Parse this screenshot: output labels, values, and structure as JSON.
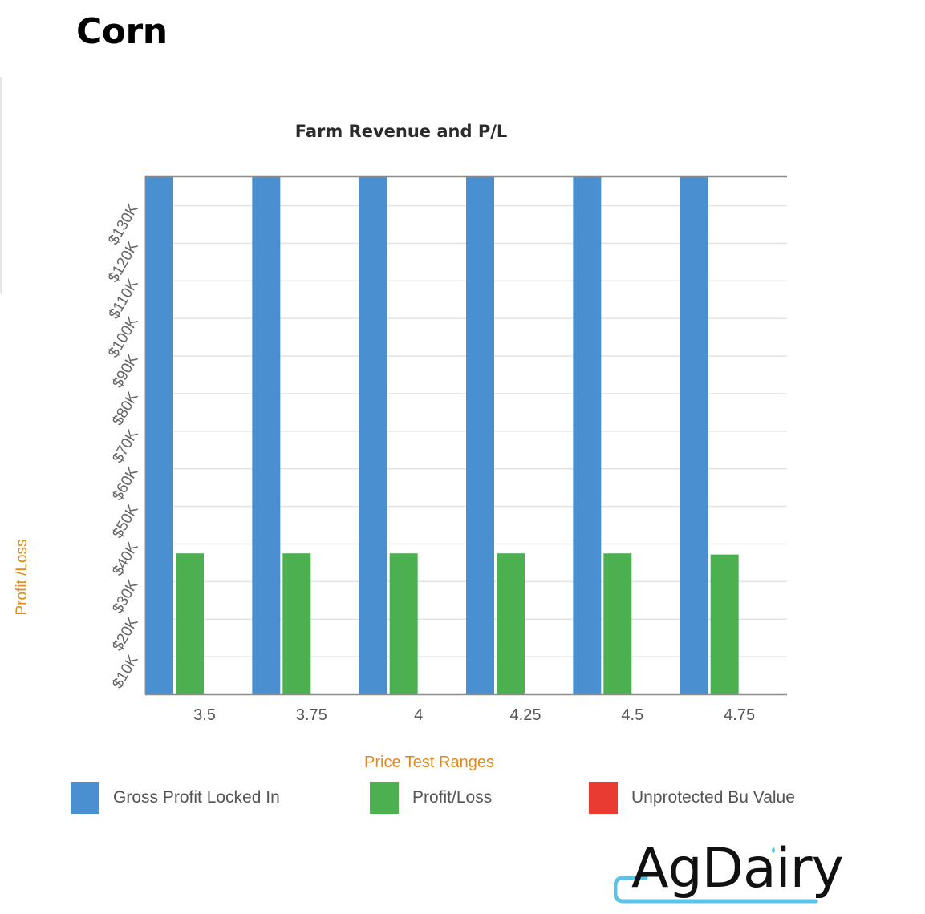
{
  "heading": "Corn",
  "chart_data": {
    "type": "bar",
    "title": "Farm Revenue and P/L",
    "xlabel": "Price Test Ranges",
    "ylabel": "Profit /Loss",
    "categories": [
      "3.5",
      "3.75",
      "4",
      "4.25",
      "4.5",
      "4.75"
    ],
    "series": [
      {
        "name": "Gross Profit Locked In",
        "color": "#4a90d0",
        "values": [
          137800,
          137800,
          137800,
          137800,
          137800,
          137800
        ]
      },
      {
        "name": "Profit/Loss",
        "color": "#4caf50",
        "values": [
          37500,
          37500,
          37500,
          37500,
          37500,
          37200
        ]
      },
      {
        "name": "Unprotected Bu Value",
        "color": "#ea3b32",
        "values": [
          0,
          0,
          0,
          0,
          0,
          0
        ]
      }
    ],
    "yticks": [
      "$10K",
      "$20K",
      "$30K",
      "$40K",
      "$50K",
      "$60K",
      "$70K",
      "$80K",
      "$90K",
      "$100K",
      "$110K",
      "$120K",
      "$130K"
    ],
    "ylim": [
      0,
      137800
    ],
    "grid": true,
    "legend_position": "bottom"
  },
  "logo": {
    "text": "AgDairy"
  }
}
